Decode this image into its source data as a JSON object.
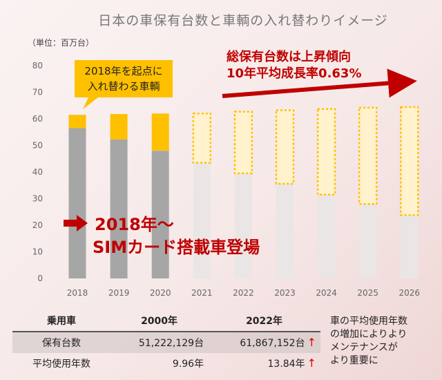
{
  "chart_data": {
    "type": "bar",
    "title": "日本の車保有台数と車輌の入れ替わりイメージ",
    "unit": "（単位：百万台）",
    "categories": [
      "2018",
      "2019",
      "2020",
      "2021",
      "2022",
      "2023",
      "2024",
      "2025",
      "2026"
    ],
    "y_ticks": [
      "0",
      "10",
      "20",
      "30",
      "40",
      "50",
      "60",
      "70",
      "80"
    ],
    "ylim": [
      0,
      80
    ],
    "series": [
      {
        "values": [
          56.5,
          52.3,
          48,
          43.5,
          39.5,
          35.6,
          31.5,
          28,
          23.8
        ]
      },
      {
        "values": [
          5,
          9.5,
          14,
          18.5,
          23.2,
          27.6,
          32.2,
          36.2,
          40.6
        ]
      }
    ],
    "callout": [
      "2018年を起点に",
      "入れ替わる車輌"
    ],
    "trend_note": [
      "総保有台数は上昇傾向",
      "10年平均成長率0.63%"
    ],
    "sim_note": [
      "2018年～",
      "SIMカード搭載車登場"
    ],
    "colors": {
      "bar_base_actual": "#a6a6a6",
      "bar_base_forecast": "#ebe6e6",
      "bar_new_actual": "#ffc000",
      "bar_new_forecast": "#fff2cc",
      "accent": "#c00000"
    }
  },
  "table": {
    "headers": [
      "乗用車",
      "2000年",
      "2022年"
    ],
    "rows": [
      {
        "label": "保有台数",
        "v2000": "51,222,129台",
        "v2022": "61,867,152台",
        "arrow": "↑"
      },
      {
        "label": "平均使用年数",
        "v2000": "9.96年",
        "v2022": "13.84年",
        "arrow": "↑"
      }
    ]
  },
  "note": [
    "車の平均使用年数",
    "の増加によりより",
    "メンテナンスが",
    "より重要に"
  ]
}
